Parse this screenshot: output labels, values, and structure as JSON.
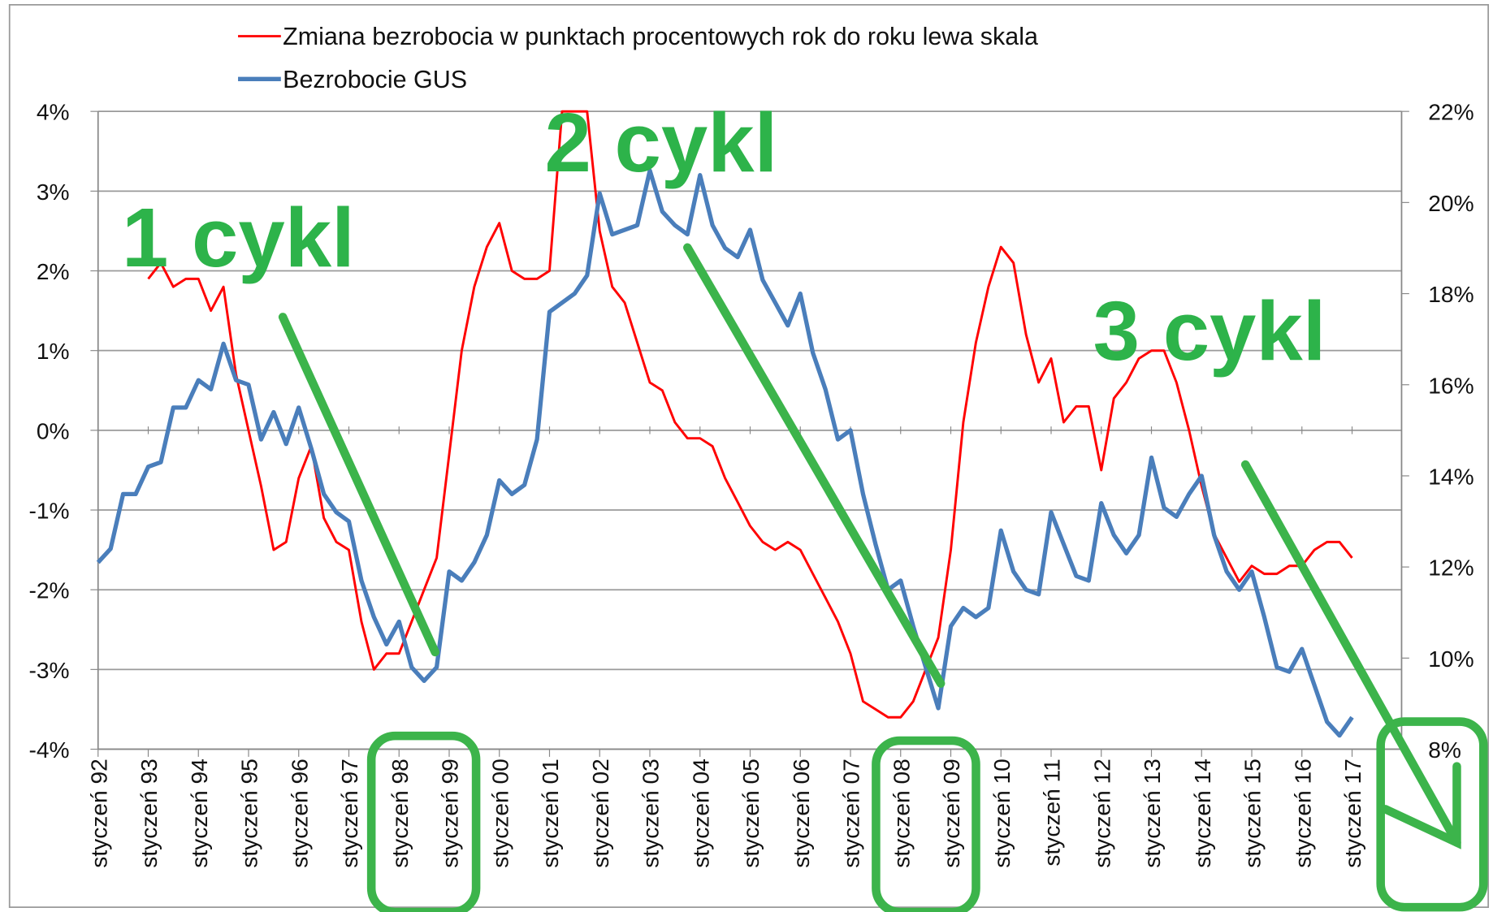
{
  "chart_data": {
    "type": "line",
    "legend": "top",
    "grid": true,
    "x": [
      1992,
      1992.25,
      1992.5,
      1992.75,
      1993,
      1993.25,
      1993.5,
      1993.75,
      1994,
      1994.25,
      1994.5,
      1994.75,
      1995,
      1995.25,
      1995.5,
      1995.75,
      1996,
      1996.25,
      1996.5,
      1996.75,
      1997,
      1997.25,
      1997.5,
      1997.75,
      1998,
      1998.25,
      1998.5,
      1998.75,
      1999,
      1999.25,
      1999.5,
      1999.75,
      2000,
      2000.25,
      2000.5,
      2000.75,
      2001,
      2001.25,
      2001.5,
      2001.75,
      2002,
      2002.25,
      2002.5,
      2002.75,
      2003,
      2003.25,
      2003.5,
      2003.75,
      2004,
      2004.25,
      2004.5,
      2004.75,
      2005,
      2005.25,
      2005.5,
      2005.75,
      2006,
      2006.25,
      2006.5,
      2006.75,
      2007,
      2007.25,
      2007.5,
      2007.75,
      2008,
      2008.25,
      2008.5,
      2008.75,
      2009,
      2009.25,
      2009.5,
      2009.75,
      2010,
      2010.25,
      2010.5,
      2010.75,
      2011,
      2011.25,
      2011.5,
      2011.75,
      2012,
      2012.25,
      2012.5,
      2012.75,
      2013,
      2013.25,
      2013.5,
      2013.75,
      2014,
      2014.25,
      2014.5,
      2014.75,
      2015,
      2015.25,
      2015.5,
      2015.75,
      2016,
      2016.25,
      2016.5,
      2016.75,
      2017
    ],
    "series": [
      {
        "name": "Zmiana bezrobocia w punktach procentowych rok do roku lewa skala",
        "color": "#ff0000",
        "axis": "y",
        "values": [
          null,
          null,
          null,
          null,
          1.9,
          2.1,
          1.8,
          1.9,
          1.9,
          1.5,
          1.8,
          0.7,
          0.0,
          -0.7,
          -1.5,
          -1.4,
          -0.6,
          -0.2,
          -1.1,
          -1.4,
          -1.5,
          -2.4,
          -3.0,
          -2.8,
          -2.8,
          -2.4,
          -2.0,
          -1.6,
          -0.3,
          1.0,
          1.8,
          2.3,
          2.6,
          2.0,
          1.9,
          1.9,
          2.0,
          4.0,
          4.0,
          4.0,
          2.5,
          1.8,
          1.6,
          1.1,
          0.6,
          0.5,
          0.1,
          -0.1,
          -0.1,
          -0.2,
          -0.6,
          -0.9,
          -1.2,
          -1.4,
          -1.5,
          -1.4,
          -1.5,
          -1.8,
          -2.1,
          -2.4,
          -2.8,
          -3.4,
          -3.5,
          -3.6,
          -3.6,
          -3.4,
          -3.0,
          -2.6,
          -1.5,
          0.1,
          1.1,
          1.8,
          2.3,
          2.1,
          1.2,
          0.6,
          0.9,
          0.1,
          0.3,
          0.3,
          -0.5,
          0.4,
          0.6,
          0.9,
          1.0,
          1.0,
          0.6,
          0.0,
          -0.7,
          -1.3,
          -1.6,
          -1.9,
          -1.7,
          -1.8,
          -1.8,
          -1.7,
          -1.7,
          -1.5,
          -1.4,
          -1.4,
          -1.6
        ]
      },
      {
        "name": "Bezrobocie GUS",
        "color": "#4a7ebb",
        "axis": "y2",
        "values": [
          12.1,
          12.4,
          13.6,
          13.6,
          14.2,
          14.3,
          15.5,
          15.5,
          16.1,
          15.9,
          16.9,
          16.1,
          16.0,
          14.8,
          15.4,
          14.7,
          15.5,
          14.6,
          13.6,
          13.2,
          13.0,
          11.7,
          10.9,
          10.3,
          10.8,
          9.8,
          9.5,
          9.8,
          11.9,
          11.7,
          12.1,
          12.7,
          13.9,
          13.6,
          13.8,
          14.8,
          17.6,
          17.8,
          18.0,
          18.4,
          20.2,
          19.3,
          19.4,
          19.5,
          20.7,
          19.8,
          19.5,
          19.3,
          20.6,
          19.5,
          19.0,
          18.8,
          19.4,
          18.3,
          17.8,
          17.3,
          18.0,
          16.7,
          15.9,
          14.8,
          15.0,
          13.6,
          12.5,
          11.5,
          11.7,
          10.7,
          9.8,
          8.9,
          10.7,
          11.1,
          10.9,
          11.1,
          12.8,
          11.9,
          11.5,
          11.4,
          13.2,
          12.5,
          11.8,
          11.7,
          13.4,
          12.7,
          12.3,
          12.7,
          14.4,
          13.3,
          13.1,
          13.6,
          14.0,
          12.7,
          11.9,
          11.5,
          11.9,
          10.9,
          9.8,
          9.7,
          10.2,
          9.4,
          8.6,
          8.3,
          8.7
        ]
      }
    ],
    "xlim": [
      1992,
      2017
    ],
    "xticks": [
      {
        "value": 1992,
        "label": "styczeń 92"
      },
      {
        "value": 1993,
        "label": "styczeń 93"
      },
      {
        "value": 1994,
        "label": "styczeń 94"
      },
      {
        "value": 1995,
        "label": "styczeń 95"
      },
      {
        "value": 1996,
        "label": "styczeń 96"
      },
      {
        "value": 1997,
        "label": "styczeń 97"
      },
      {
        "value": 1998,
        "label": "styczeń 98"
      },
      {
        "value": 1999,
        "label": "styczeń 99"
      },
      {
        "value": 2000,
        "label": "styczeń 00"
      },
      {
        "value": 2001,
        "label": "styczeń 01"
      },
      {
        "value": 2002,
        "label": "styczeń 02"
      },
      {
        "value": 2003,
        "label": "styczeń 03"
      },
      {
        "value": 2004,
        "label": "styczeń 04"
      },
      {
        "value": 2005,
        "label": "styczeń 05"
      },
      {
        "value": 2006,
        "label": "styczeń 06"
      },
      {
        "value": 2007,
        "label": "styczeń 07"
      },
      {
        "value": 2008,
        "label": "styczeń 08"
      },
      {
        "value": 2009,
        "label": "styczeń 09"
      },
      {
        "value": 2010,
        "label": "styczeń 10"
      },
      {
        "value": 2011,
        "label": "styczeń 11"
      },
      {
        "value": 2012,
        "label": "styczeń 12"
      },
      {
        "value": 2013,
        "label": "styczeń 13"
      },
      {
        "value": 2014,
        "label": "styczeń 14"
      },
      {
        "value": 2015,
        "label": "styczeń 15"
      },
      {
        "value": 2016,
        "label": "styczeń 16"
      },
      {
        "value": 2017,
        "label": "styczeń 17"
      }
    ],
    "ylim": [
      -4,
      4
    ],
    "yticks": [
      {
        "value": -4,
        "label": "-4%"
      },
      {
        "value": -3,
        "label": "-3%"
      },
      {
        "value": -2,
        "label": "-2%"
      },
      {
        "value": -1,
        "label": "-1%"
      },
      {
        "value": 0,
        "label": "0%"
      },
      {
        "value": 1,
        "label": "1%"
      },
      {
        "value": 2,
        "label": "2%"
      },
      {
        "value": 3,
        "label": "3%"
      },
      {
        "value": 4,
        "label": "4%"
      }
    ],
    "y2lim": [
      8,
      22
    ],
    "y2ticks": [
      {
        "value": 8,
        "label": "8%"
      },
      {
        "value": 10,
        "label": "10%"
      },
      {
        "value": 12,
        "label": "12%"
      },
      {
        "value": 14,
        "label": "14%"
      },
      {
        "value": 16,
        "label": "16%"
      },
      {
        "value": 18,
        "label": "18%"
      },
      {
        "value": 20,
        "label": "20%"
      },
      {
        "value": 22,
        "label": "22%"
      }
    ],
    "annotations": [
      "1 cykl",
      "2 cykl",
      "3 cykl"
    ]
  }
}
